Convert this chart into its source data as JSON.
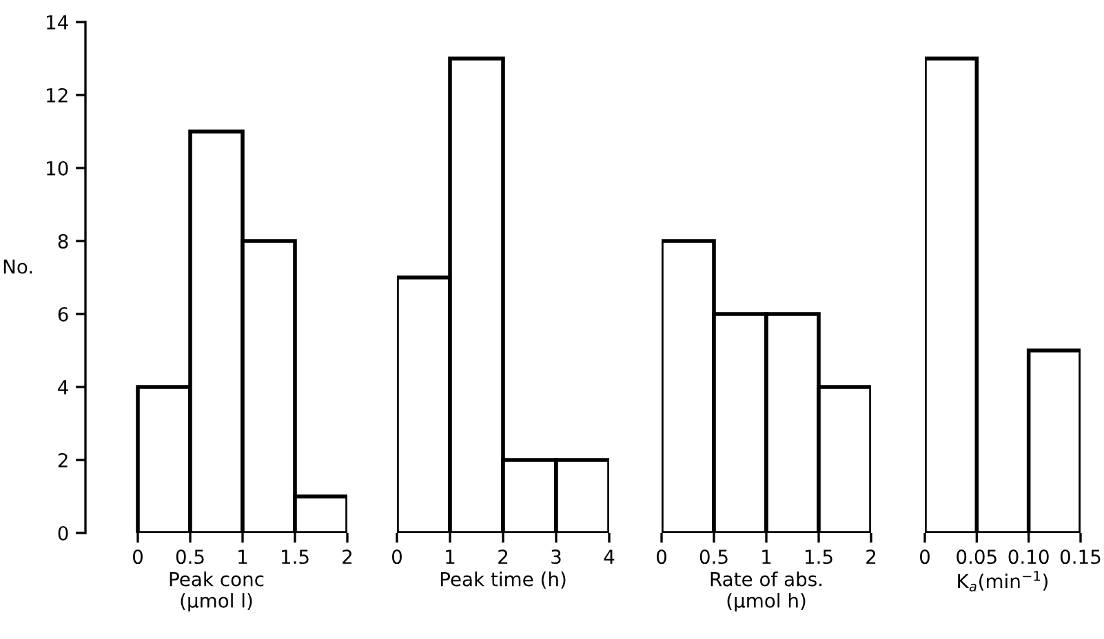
{
  "chart_data": [
    {
      "type": "histogram",
      "ylabel": "No.",
      "xlabel": "Peak conc\n(μmol l)",
      "bins": [
        0,
        0.5,
        1,
        1.5,
        2
      ],
      "values": [
        4,
        11,
        8,
        1
      ],
      "xlim": [
        -0.5,
        2
      ],
      "xticks": [
        0,
        0.5,
        1,
        1.5,
        2
      ],
      "ylim": [
        0,
        14
      ],
      "yticks": [
        0,
        2,
        4,
        6,
        8,
        10,
        12,
        14
      ],
      "color": "#ffffff"
    },
    {
      "type": "histogram",
      "xlabel": "Peak time (h)",
      "bins": [
        0,
        1,
        2,
        3,
        4
      ],
      "values": [
        7,
        13,
        2,
        2
      ],
      "xlim": [
        0,
        4
      ],
      "xticks": [
        0,
        1,
        2,
        3,
        4
      ],
      "ylim": [
        0,
        14
      ],
      "tick_labels": "x",
      "color": "#ffffff"
    },
    {
      "type": "histogram",
      "xlabel": "Rate of abs.\n(μmol h)",
      "bins": [
        0,
        0.5,
        1,
        1.5,
        2
      ],
      "values": [
        8,
        6,
        6,
        4
      ],
      "xlim": [
        0,
        2
      ],
      "xticks": [
        0,
        0.5,
        1,
        1.5,
        2
      ],
      "ylim": [
        0,
        14
      ],
      "tick_labels": "x",
      "color": "#ffffff"
    },
    {
      "type": "histogram",
      "xlabel": "K$_{a}$(min$^{−1}$)",
      "bins": [
        0,
        0.05,
        0.1,
        0.15
      ],
      "values": [
        13,
        0,
        5
      ],
      "xlim": [
        0,
        0.15
      ],
      "xticks": [
        0,
        0.05,
        {
          "value": 0.1,
          "label": "0.10"
        },
        0.15
      ],
      "ylim": [
        0,
        14
      ],
      "tick_labels": "x",
      "color": "#ffffff"
    }
  ]
}
